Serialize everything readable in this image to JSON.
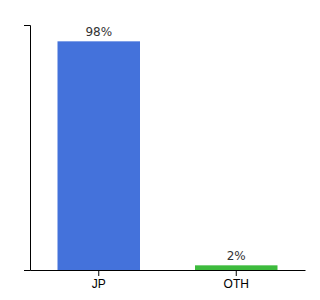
{
  "chart_data": {
    "type": "bar",
    "categories": [
      "JP",
      "OTH"
    ],
    "values": [
      98,
      2
    ],
    "colors": [
      "#4472db",
      "#3dbb3d"
    ],
    "value_labels": [
      "98%",
      "2%"
    ],
    "data_labels": true,
    "ylim": [
      0,
      105
    ],
    "tick_labels": "x"
  }
}
